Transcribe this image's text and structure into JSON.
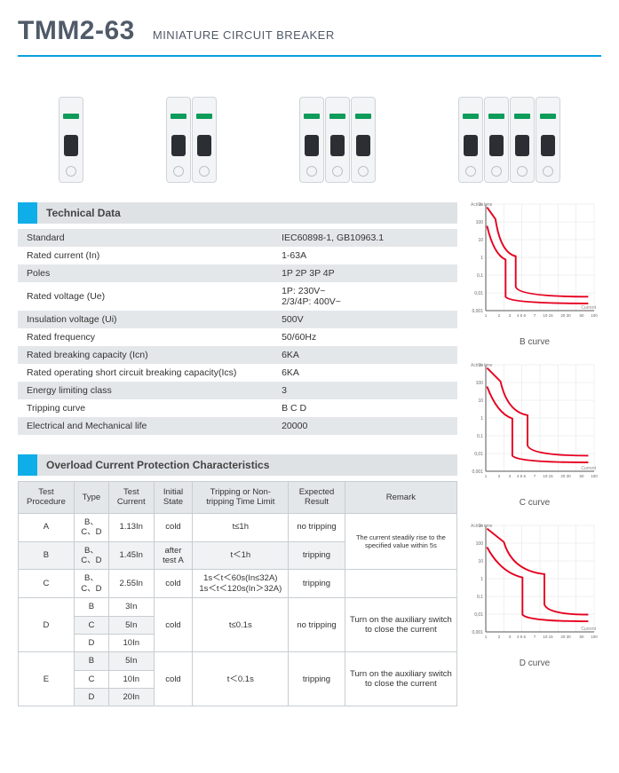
{
  "header": {
    "title": "TMM2-63",
    "subtitle": "MINIATURE CIRCUIT BREAKER"
  },
  "sections": {
    "tech": "Technical Data",
    "overload": "Overload Current Protection Characteristics"
  },
  "tech_table": {
    "rows": [
      {
        "label": "Standard",
        "value": "IEC60898-1, GB10963.1"
      },
      {
        "label": "Rated current (In)",
        "value": "1-63A"
      },
      {
        "label": "Poles",
        "value": "1P  2P  3P  4P"
      },
      {
        "label": "Rated voltage (Ue)",
        "value": "1P: 230V~\n2/3/4P: 400V~"
      },
      {
        "label": "Insulation voltage (Ui)",
        "value": "500V"
      },
      {
        "label": "Rated frequency",
        "value": "50/60Hz"
      },
      {
        "label": "Rated breaking capacity (Icn)",
        "value": "6KA"
      },
      {
        "label": "Rated operating short circuit breaking capacity(Ics)",
        "value": "6KA"
      },
      {
        "label": "Energy limiting class",
        "value": "3"
      },
      {
        "label": "Tripping curve",
        "value": "B  C  D"
      },
      {
        "label": "Electrical and Mechanical life",
        "value": "20000"
      }
    ]
  },
  "overload_table": {
    "headers": [
      "Test Procedure",
      "Type",
      "Test Current",
      "Initial State",
      "Tripping or Non-tripping Time Limit",
      "Expected Result",
      "Remark"
    ],
    "rows_flat": {
      "A": {
        "proc": "A",
        "type": "B、C、D",
        "curr": "1.13In",
        "state": "cold",
        "time": "t≤1h",
        "result": "no tripping"
      },
      "B": {
        "proc": "B",
        "type": "B、C、D",
        "curr": "1.45In",
        "state": "after test A",
        "time": "t＜1h",
        "result": "tripping",
        "remark": "The current steadily rise to the specified value within 5s"
      },
      "C": {
        "proc": "C",
        "type": "B、C、D",
        "curr": "2.55In",
        "state": "cold",
        "time": "1s＜t＜60s(In≤32A)\n1s＜t＜120s(In＞32A)",
        "result": "tripping"
      },
      "D": {
        "proc": "D",
        "types": [
          "B",
          "C",
          "D"
        ],
        "currs": [
          "3In",
          "5In",
          "10In"
        ],
        "state": "cold",
        "time": "t≤0.1s",
        "result": "no tripping",
        "remark": "Turn on the auxiliary switch to close the current"
      },
      "E": {
        "proc": "E",
        "types": [
          "B",
          "C",
          "D"
        ],
        "currs": [
          "5In",
          "10In",
          "20In"
        ],
        "state": "cold",
        "time": "t＜0.1s",
        "result": "tripping",
        "remark": "Turn on the auxiliary switch to close the current"
      }
    }
  },
  "curves": {
    "axis_color": "#555",
    "grid_color": "#e0e0e0",
    "line_color": "#e6001f",
    "line_width": 2,
    "background": "#ffffff",
    "y_label": "Active time",
    "x_label": "Current",
    "x_ticks": [
      "1",
      "2",
      "3",
      "4",
      "5",
      "6",
      "7",
      "10",
      "15",
      "20",
      "30",
      "50",
      "100"
    ],
    "y_ticks": [
      "0.001",
      "0.01",
      "0.1",
      "1",
      "10",
      "100",
      "1000",
      "1h"
    ],
    "title_fontsize": 10,
    "charts": [
      {
        "title": "B  curve",
        "upper_path": "12 8 L 22 22 Q 28 62 46 66 L 46 102 Q 48 114 132 114",
        "lower_path": "12 30 Q 20 64 34 70 L 34 114 Q 38 122 132 122"
      },
      {
        "title": "C  curve",
        "upper_path": "12 8 L 28 24 Q 36 60 60 64 L 60 100 Q 64 112 132 112",
        "lower_path": "12 30 Q 24 62 42 68 L 42 112 Q 48 120 132 120"
      },
      {
        "title": "D  curve",
        "upper_path": "12 8 L 32 24 Q 42 58 80 62 L 80 98 Q 84 110 132 110",
        "lower_path": "12 30 Q 28 60 54 66 L 54 110 Q 60 118 132 118"
      }
    ]
  },
  "products": {
    "poles": [
      1,
      2,
      3,
      4
    ]
  },
  "colors": {
    "accent": "#10aee8",
    "header_text": "#505a68",
    "row_alt": "#e4e7ea",
    "border": "#c8cdd2"
  }
}
